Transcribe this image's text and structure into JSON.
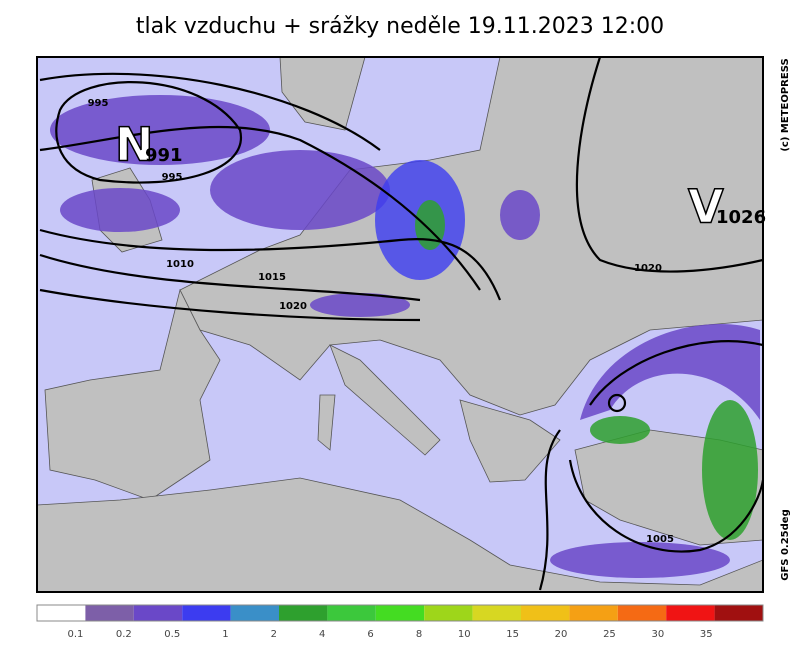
{
  "title": "tlak vzduchu + srážky  neděle 19.11.2023 12:00",
  "credits": {
    "copyright": "(c) METEOPRESS",
    "model": "GFS 0.25deg"
  },
  "pressure_centers": [
    {
      "letter": "N",
      "value": "991"
    },
    {
      "letter": "V",
      "value": "1026"
    }
  ],
  "isobar_labels": [
    "995",
    "995",
    "1010",
    "1015",
    "1020",
    "1020",
    "1005"
  ],
  "legend": {
    "colors": [
      "#ffffff",
      "#7d5fa8",
      "#6a48c8",
      "#3c3cf0",
      "#3a8fc8",
      "#2ea02e",
      "#3cc83c",
      "#44dc22",
      "#9ed61a",
      "#d7d722",
      "#f0c018",
      "#f5a014",
      "#f56a14",
      "#f01414",
      "#a01010"
    ],
    "labels": [
      "0.1",
      "0.2",
      "0.5",
      "1",
      "2",
      "4",
      "6",
      "8",
      "10",
      "15",
      "20",
      "25",
      "30",
      "35"
    ]
  }
}
